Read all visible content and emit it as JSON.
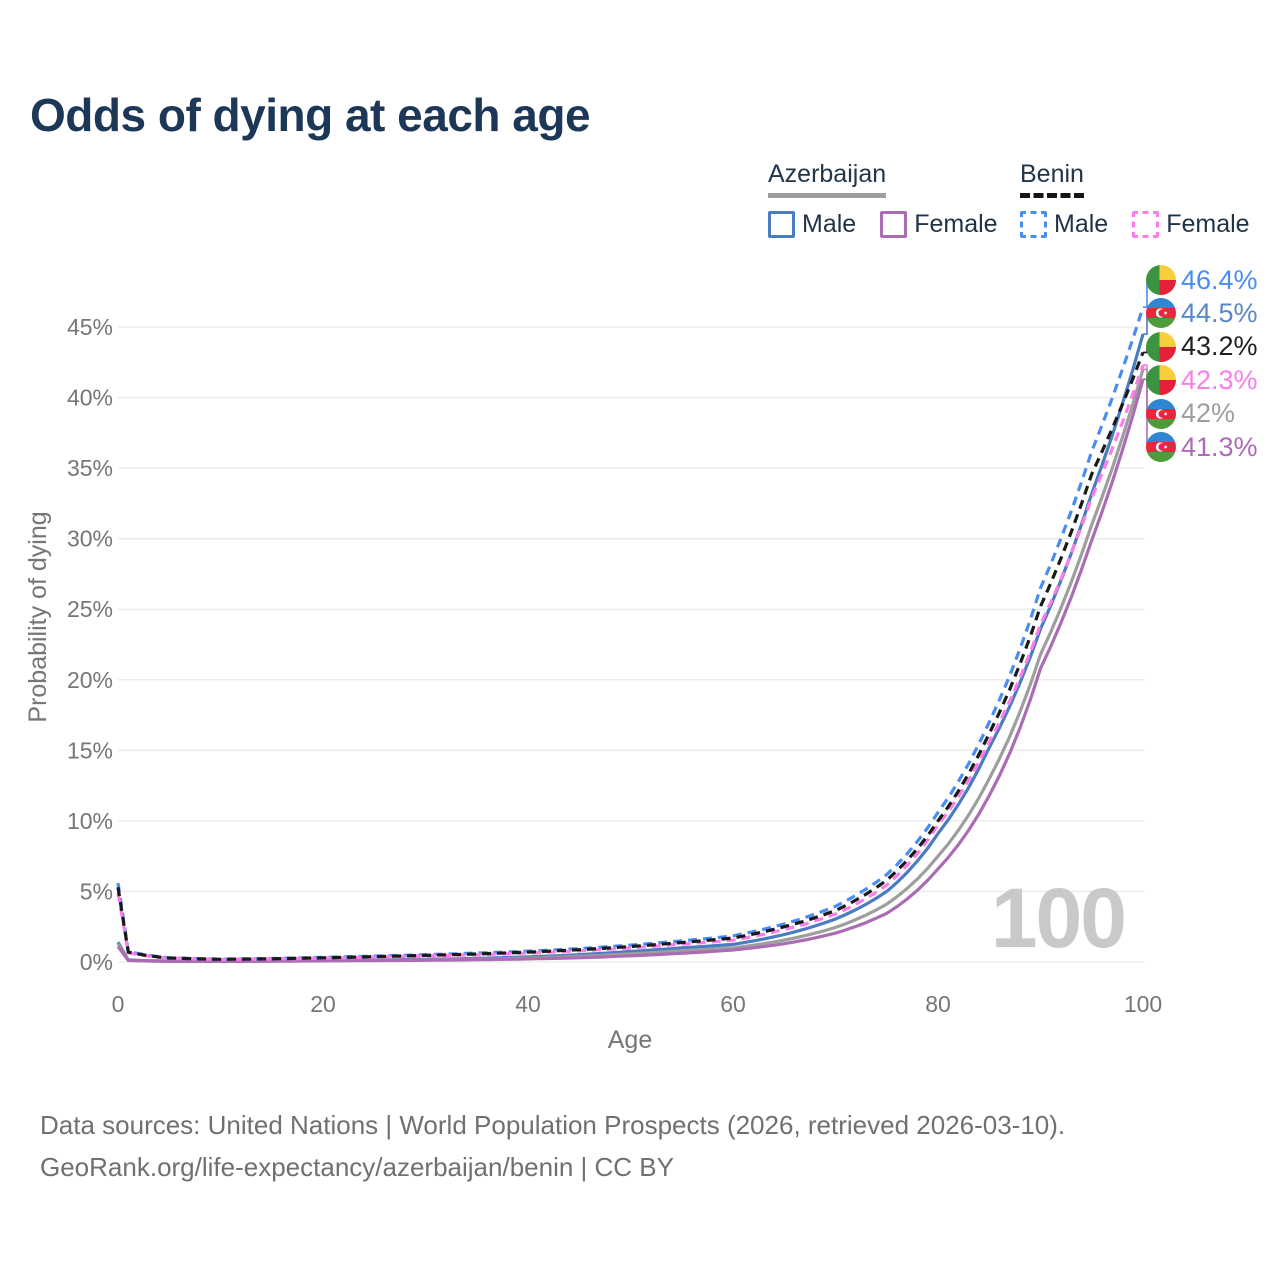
{
  "header": {
    "title": "Odds of dying at each age"
  },
  "legend": {
    "groups": [
      {
        "label": "Azerbaijan",
        "line_style": "solid",
        "underline_color": "#9e9e9e",
        "items": [
          {
            "label": "Male",
            "series": "az_male"
          },
          {
            "label": "Female",
            "series": "az_female"
          }
        ]
      },
      {
        "label": "Benin",
        "line_style": "dashed",
        "underline_color": "#161616",
        "items": [
          {
            "label": "Male",
            "series": "benin_male"
          },
          {
            "label": "Female",
            "series": "benin_female"
          }
        ]
      }
    ]
  },
  "chart_data": {
    "type": "line",
    "title": "Odds of dying at each age",
    "xlabel": "Age",
    "ylabel": "Probability of dying",
    "xlim": [
      0,
      100
    ],
    "ylim": [
      0,
      48
    ],
    "x_ticks": [
      0,
      20,
      40,
      60,
      80,
      100
    ],
    "y_ticks": [
      0,
      5,
      10,
      15,
      20,
      25,
      30,
      35,
      40,
      45
    ],
    "y_tick_suffix": "%",
    "grid": "horizontal",
    "watermark": "100",
    "ages": [
      0,
      1,
      5,
      10,
      15,
      20,
      25,
      30,
      35,
      40,
      45,
      50,
      55,
      60,
      65,
      70,
      75,
      80,
      85,
      90,
      95,
      100
    ],
    "series": [
      {
        "key": "az_male",
        "name": "Azerbaijan Male",
        "color": "#4a7cc2",
        "dash": false,
        "values": [
          1.4,
          0.15,
          0.06,
          0.05,
          0.08,
          0.12,
          0.15,
          0.19,
          0.26,
          0.36,
          0.52,
          0.75,
          1.0,
          1.25,
          1.95,
          3.05,
          5.0,
          9.1,
          15.2,
          23.6,
          33.2,
          44.5
        ]
      },
      {
        "key": "az_both",
        "name": "Azerbaijan Both sexes",
        "color": "#9e9e9e",
        "dash": false,
        "values": [
          1.3,
          0.13,
          0.05,
          0.045,
          0.07,
          0.1,
          0.12,
          0.15,
          0.2,
          0.28,
          0.4,
          0.58,
          0.8,
          1.0,
          1.55,
          2.45,
          4.1,
          7.5,
          13.0,
          21.8,
          31.0,
          42.0
        ]
      },
      {
        "key": "az_female",
        "name": "Azerbaijan Female",
        "color": "#aa6db4",
        "dash": false,
        "values": [
          1.1,
          0.11,
          0.045,
          0.04,
          0.055,
          0.08,
          0.1,
          0.12,
          0.16,
          0.22,
          0.3,
          0.44,
          0.62,
          0.85,
          1.3,
          2.05,
          3.45,
          6.6,
          11.8,
          20.8,
          29.9,
          41.3
        ]
      },
      {
        "key": "benin_male",
        "name": "Benin Male",
        "color": "#4a8df2",
        "dash": true,
        "values": [
          5.6,
          0.75,
          0.3,
          0.2,
          0.25,
          0.33,
          0.42,
          0.52,
          0.63,
          0.77,
          0.95,
          1.2,
          1.5,
          1.85,
          2.7,
          3.95,
          6.2,
          10.6,
          17.0,
          26.5,
          36.2,
          46.4
        ]
      },
      {
        "key": "benin_female",
        "name": "Benin Female",
        "color": "#fb7de9",
        "dash": true,
        "values": [
          4.9,
          0.65,
          0.26,
          0.18,
          0.21,
          0.27,
          0.35,
          0.43,
          0.52,
          0.64,
          0.79,
          1.0,
          1.27,
          1.55,
          2.3,
          3.4,
          5.45,
          9.7,
          15.6,
          23.9,
          32.9,
          42.3
        ]
      },
      {
        "key": "benin_both",
        "name": "Benin Both sexes",
        "color": "#1a1a1a",
        "dash": true,
        "values": [
          5.3,
          0.7,
          0.28,
          0.19,
          0.23,
          0.3,
          0.38,
          0.47,
          0.57,
          0.7,
          0.87,
          1.1,
          1.38,
          1.7,
          2.5,
          3.65,
          5.8,
          10.0,
          16.2,
          25.2,
          34.6,
          43.2
        ]
      }
    ],
    "end_labels": [
      {
        "text": "46.4%",
        "series": "benin_male",
        "flag": "benin",
        "color": "#4a8df2"
      },
      {
        "text": "44.5%",
        "series": "az_male",
        "flag": "azerbaijan",
        "color": "#5b87c9"
      },
      {
        "text": "43.2%",
        "series": "benin_both",
        "flag": "benin",
        "color": "#1f1f1f"
      },
      {
        "text": "42.3%",
        "series": "benin_female",
        "flag": "benin",
        "color": "#fb7de9"
      },
      {
        "text": "42%",
        "series": "az_both",
        "flag": "azerbaijan",
        "color": "#9e9e9e"
      },
      {
        "text": "41.3%",
        "series": "az_female",
        "flag": "azerbaijan",
        "color": "#aa6db4"
      }
    ]
  },
  "flags": {
    "benin": {
      "green": "#3d9440",
      "yellow": "#f7ce3c",
      "red": "#e32139"
    },
    "azerbaijan": {
      "blue": "#2f86d2",
      "red": "#e8273d",
      "green": "#4e9b3b",
      "white": "#ffffff"
    }
  },
  "footer": {
    "line1": "Data sources: United Nations | World Population Prospects (2026, retrieved 2026-03-10).",
    "line2": "GeoRank.org/life-expectancy/azerbaijan/benin | CC BY"
  }
}
